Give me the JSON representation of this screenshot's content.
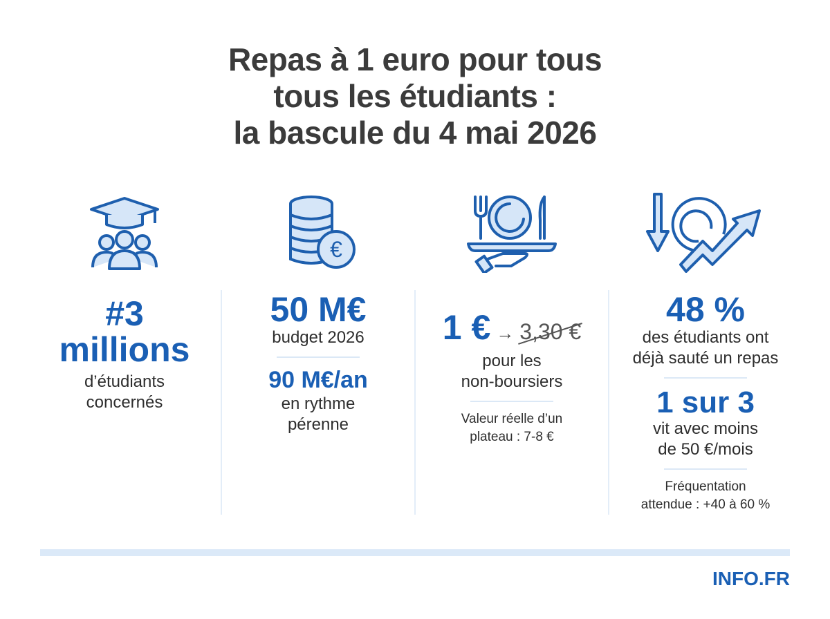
{
  "title": {
    "line1": "Repas à 1 euro pour tous",
    "line2": "tous les étudiants :",
    "line3": "la bascule du 4 mai 2026"
  },
  "colors": {
    "accent": "#1a5fb4",
    "icon_fill": "#d6e6f8",
    "divider": "#e3edf8"
  },
  "columns": [
    {
      "icon": "graduation-students-icon",
      "big1": "#3",
      "big2": "millions",
      "text1": "d’étudiants",
      "text2": "concernés"
    },
    {
      "icon": "euro-coins-icon",
      "big": "50 M€",
      "text": "budget 2026",
      "mid": "90 M€/an",
      "text2a": "en rythme",
      "text2b": "pérenne"
    },
    {
      "icon": "served-plate-icon",
      "big": "1 €",
      "arrow": "→",
      "old_price": "3,30 €",
      "text1": "pour les",
      "text2": "non-boursiers",
      "small1": "Valeur réelle d’un",
      "small2": "plateau : 7-8 €"
    },
    {
      "icon": "plate-trend-icon",
      "big": "48 %",
      "text1": "des étudiants ont",
      "text2": "déjà sauté un repas",
      "mid": "1 sur 3",
      "text3": "vit avec moins",
      "text4": "de 50 €/mois",
      "small1": "Fréquentation",
      "small2": "attendue : +40 à 60 %"
    }
  ],
  "footer": {
    "logo": "INFO.FR"
  }
}
